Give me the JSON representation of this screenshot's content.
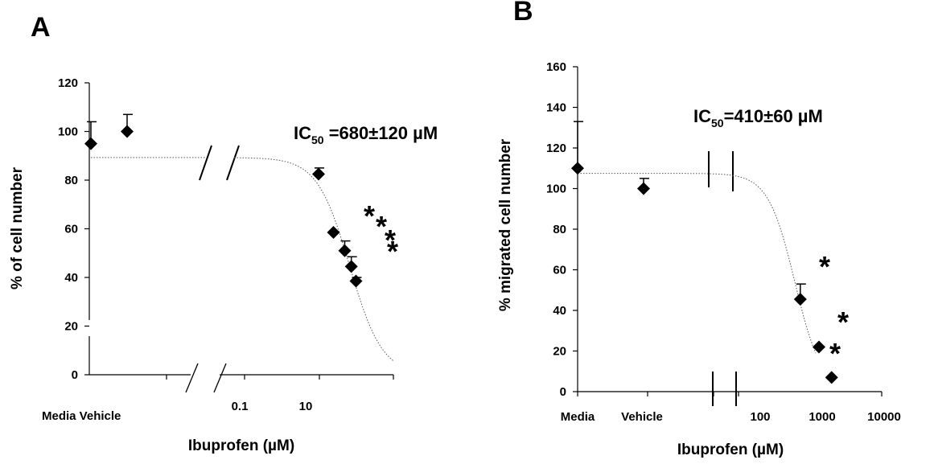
{
  "chart_data": [
    {
      "panel": "A",
      "type": "scatter",
      "xlabel": "Ibuprofen (µM)",
      "ylabel": "% of cell number",
      "ylim": [
        0,
        120
      ],
      "yticks": [
        0,
        20,
        40,
        60,
        80,
        100,
        120
      ],
      "annotation": {
        "main": "IC",
        "sub": "50",
        "rest": " =680±120 µM"
      },
      "categories": [
        "Media",
        "Vehicle"
      ],
      "category_label": "Media Vehicle",
      "x_scale": "log",
      "xticks": [
        {
          "value": 0.1,
          "label": "0.1"
        },
        {
          "value": 10,
          "label": "10"
        }
      ],
      "axis_break": true,
      "points": [
        {
          "x": "Media",
          "y": 95,
          "err": 9
        },
        {
          "x": "Vehicle",
          "y": 100,
          "err": 7
        },
        {
          "x": 100,
          "y": 82.5,
          "err": 2.5
        },
        {
          "x": 250,
          "y": 58.5,
          "err": 0,
          "sig": "*"
        },
        {
          "x": 500,
          "y": 51,
          "err": 4,
          "sig": "*"
        },
        {
          "x": 750,
          "y": 44.5,
          "err": 4,
          "sig": "*"
        },
        {
          "x": 1000,
          "y": 38.5,
          "err": 1.5,
          "sig": "*"
        }
      ],
      "fit": {
        "top": 89.3,
        "bottom": 0,
        "ic50": 680,
        "hill": 1.0
      },
      "grid": false,
      "legend": "none"
    },
    {
      "panel": "B",
      "type": "scatter",
      "xlabel": "Ibuprofen (µM)",
      "ylabel": "% migrated cell number",
      "ylim": [
        0,
        160
      ],
      "yticks": [
        0,
        20,
        40,
        60,
        80,
        100,
        120,
        140,
        160
      ],
      "annotation": {
        "main": "IC",
        "sub": "50",
        "rest": "=410±60 µM"
      },
      "categories": [
        "Media",
        "Vehicle"
      ],
      "x_scale": "log",
      "xticks": [
        {
          "value": 100,
          "label": "100"
        },
        {
          "value": 1000,
          "label": "1000"
        },
        {
          "value": 10000,
          "label": "10000"
        }
      ],
      "axis_break": true,
      "points": [
        {
          "x": "Media",
          "y": 110,
          "err": 23
        },
        {
          "x": "Vehicle",
          "y": 100,
          "err": 5
        },
        {
          "x": 500,
          "y": 45.5,
          "err": 7.5,
          "sig": "*"
        },
        {
          "x": 1000,
          "y": 22,
          "err": 0,
          "sig": "*"
        },
        {
          "x": 1600,
          "y": 7,
          "err": 0,
          "sig": "*"
        }
      ],
      "fit": {
        "top": 107.5,
        "bottom": 0,
        "ic50": 410,
        "hill": 2.0
      },
      "grid": false,
      "legend": "none"
    }
  ]
}
